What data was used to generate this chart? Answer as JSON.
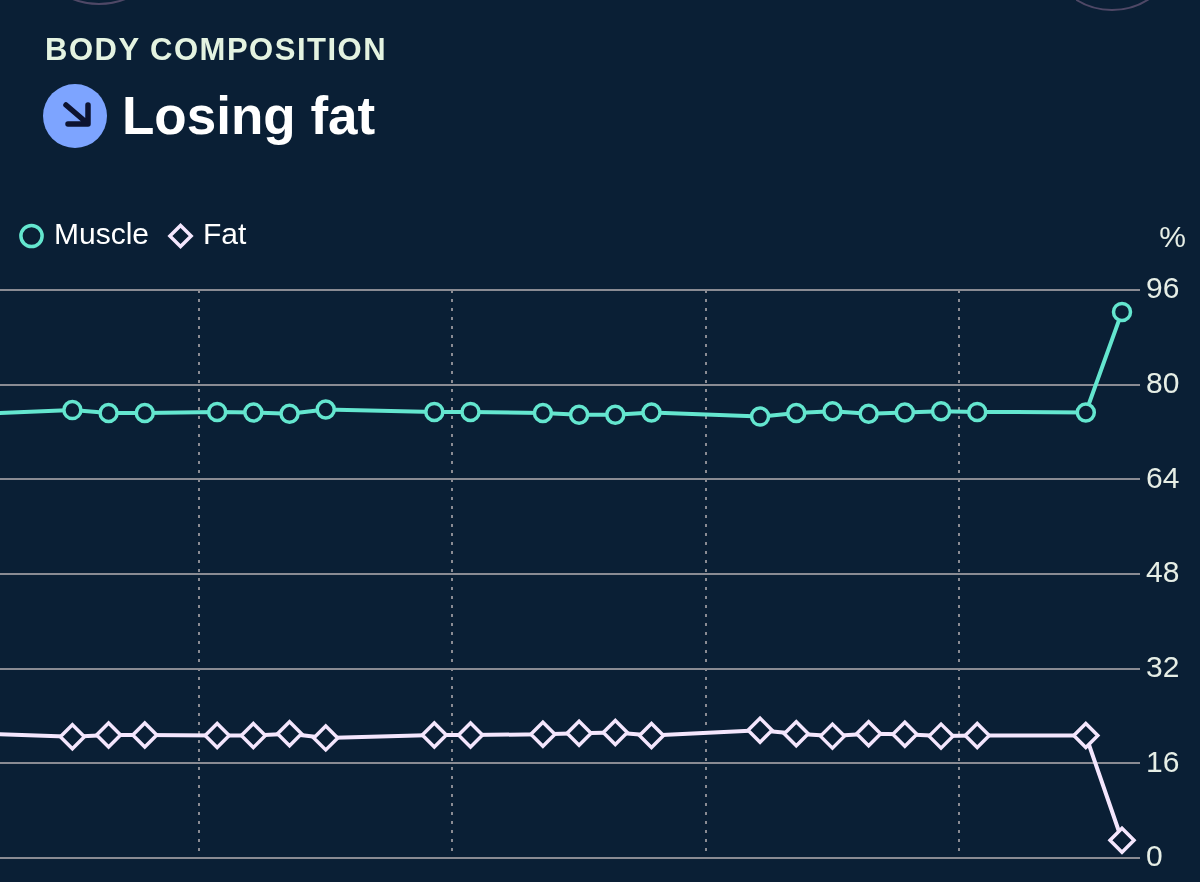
{
  "chart_data": {
    "type": "line",
    "title": "BODY COMPOSITION",
    "subtitle": "Losing fat",
    "ylabel": "%",
    "categories": [
      null,
      null,
      null,
      null,
      null,
      null,
      null,
      null,
      null,
      null,
      null,
      null,
      null,
      null,
      null,
      null,
      null,
      null,
      null,
      null,
      null,
      null,
      null,
      null,
      null,
      null,
      null,
      null,
      null,
      null,
      null,
      null
    ],
    "series": [
      {
        "name": "Muscle",
        "color": "#64e6cf",
        "marker": "circle",
        "values": [
          75.2,
          null,
          75.7,
          75.2,
          75.2,
          null,
          75.4,
          75.3,
          75.1,
          75.8,
          null,
          null,
          75.4,
          75.4,
          null,
          75.2,
          74.9,
          74.9,
          75.3,
          null,
          null,
          74.6,
          75.2,
          75.5,
          75.1,
          75.3,
          75.5,
          75.4,
          null,
          null,
          75.3,
          92.3
        ]
      },
      {
        "name": "Fat",
        "color": "#f4e6fd",
        "marker": "diamond",
        "values": [
          20.9,
          null,
          20.5,
          20.8,
          20.8,
          null,
          20.7,
          20.7,
          21.0,
          20.3,
          null,
          null,
          20.8,
          20.8,
          null,
          20.9,
          21.1,
          21.2,
          20.7,
          null,
          null,
          21.6,
          21.0,
          20.6,
          21.0,
          20.9,
          20.6,
          20.7,
          null,
          null,
          20.7,
          3.0
        ]
      }
    ],
    "ylim": [
      0,
      96
    ],
    "yticks": [
      0,
      16,
      32,
      48,
      64,
      80,
      96
    ],
    "grid": true,
    "legend": "top left"
  }
}
